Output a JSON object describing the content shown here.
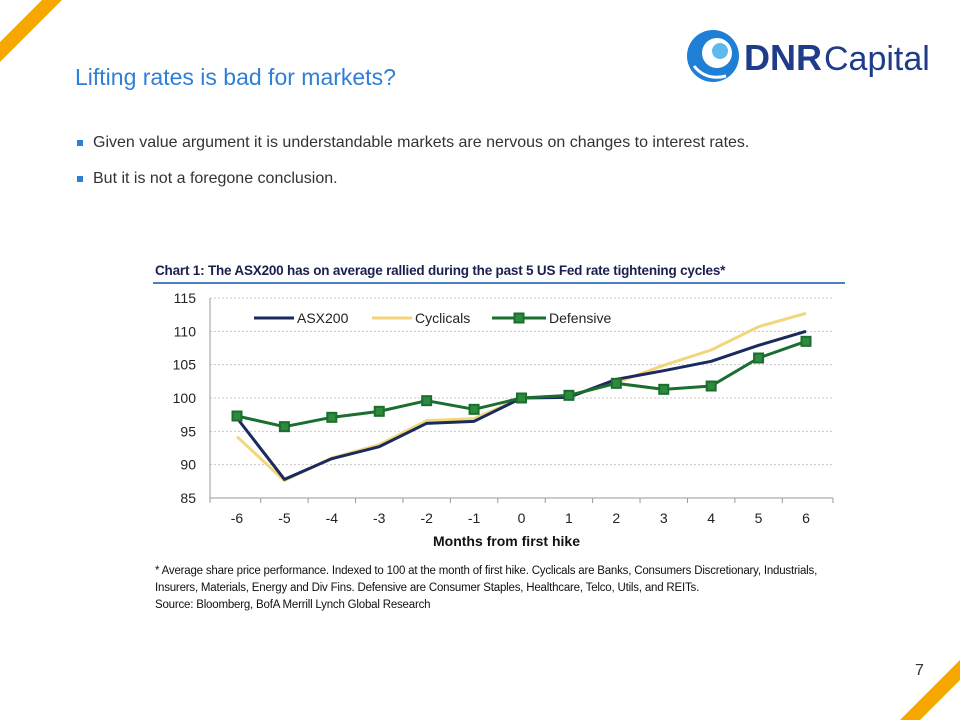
{
  "slide": {
    "title": "Lifting rates is bad for markets?",
    "bullets": [
      "Given value argument it is understandable markets are nervous on changes to interest rates.",
      "But it is not a foregone conclusion."
    ],
    "page_number": "7",
    "accent_color": "#f6a800",
    "title_color": "#2e7fd6"
  },
  "logo": {
    "bold_text": "DNR",
    "light_text": "Capital",
    "color": "#1f3c88"
  },
  "chart_data": {
    "type": "line",
    "title": "Chart 1: The ASX200 has on average rallied during the past 5 US Fed rate tightening cycles*",
    "xlabel": "Months from first hike",
    "ylabel": "",
    "x": [
      -6,
      -5,
      -4,
      -3,
      -2,
      -1,
      0,
      1,
      2,
      3,
      4,
      5,
      6
    ],
    "ylim": [
      85,
      115
    ],
    "yticks": [
      85,
      90,
      95,
      100,
      105,
      110,
      115
    ],
    "grid": "horizontal",
    "legend": "top-left",
    "series": [
      {
        "name": "ASX200",
        "color": "#1a2a5e",
        "marker": "none",
        "values": [
          97.0,
          87.8,
          90.9,
          92.7,
          96.2,
          96.5,
          100.0,
          100.1,
          102.8,
          104.1,
          105.5,
          107.9,
          110.0
        ]
      },
      {
        "name": "Cyclicals",
        "color": "#f2d67a",
        "marker": "none",
        "values": [
          94.2,
          87.6,
          91.0,
          93.0,
          96.6,
          96.9,
          100.0,
          100.3,
          102.3,
          104.9,
          107.2,
          110.7,
          112.7
        ]
      },
      {
        "name": "Defensive",
        "color": "#1a6e2e",
        "marker": "square",
        "values": [
          97.3,
          95.7,
          97.1,
          98.0,
          99.6,
          98.3,
          100.0,
          100.4,
          102.2,
          101.3,
          101.8,
          106.0,
          108.5
        ]
      }
    ],
    "footnote_lines": [
      "* Average share price performance. Indexed to 100 at the month of first hike. Cyclicals are Banks, Consumers Discretionary, Industrials,",
      "Insurers, Materials, Energy and Div Fins. Defensive are Consumer Staples, Healthcare, Telco, Utils, and REITs.",
      "Source: Bloomberg, BofA Merrill Lynch Global Research"
    ]
  }
}
